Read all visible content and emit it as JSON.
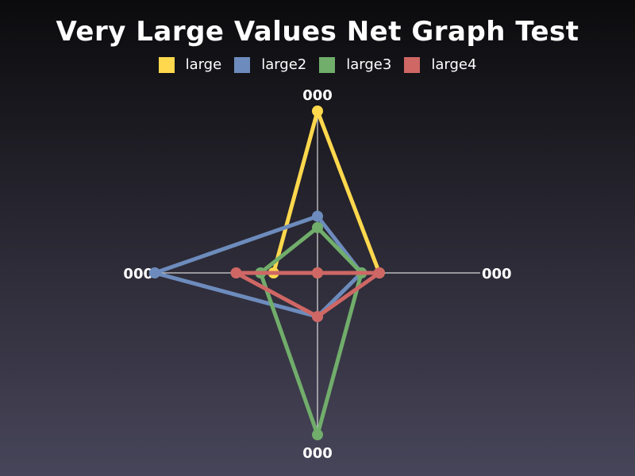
{
  "chart_data": {
    "type": "radar",
    "title": "Very Large Values Net Graph Test",
    "axes": [
      "000",
      "000",
      "000",
      "000"
    ],
    "max": 100,
    "legend_position": "top",
    "grid": false,
    "series": [
      {
        "name": "large",
        "color": "#ffd84d",
        "values": [
          100,
          38,
          0,
          27
        ]
      },
      {
        "name": "large2",
        "color": "#6d8cbd",
        "values": [
          35,
          27,
          27,
          100
        ]
      },
      {
        "name": "large3",
        "color": "#71ad6b",
        "values": [
          28,
          27,
          100,
          35
        ]
      },
      {
        "name": "large4",
        "color": "#cf6765",
        "values": [
          0,
          38,
          27,
          50
        ]
      }
    ]
  }
}
